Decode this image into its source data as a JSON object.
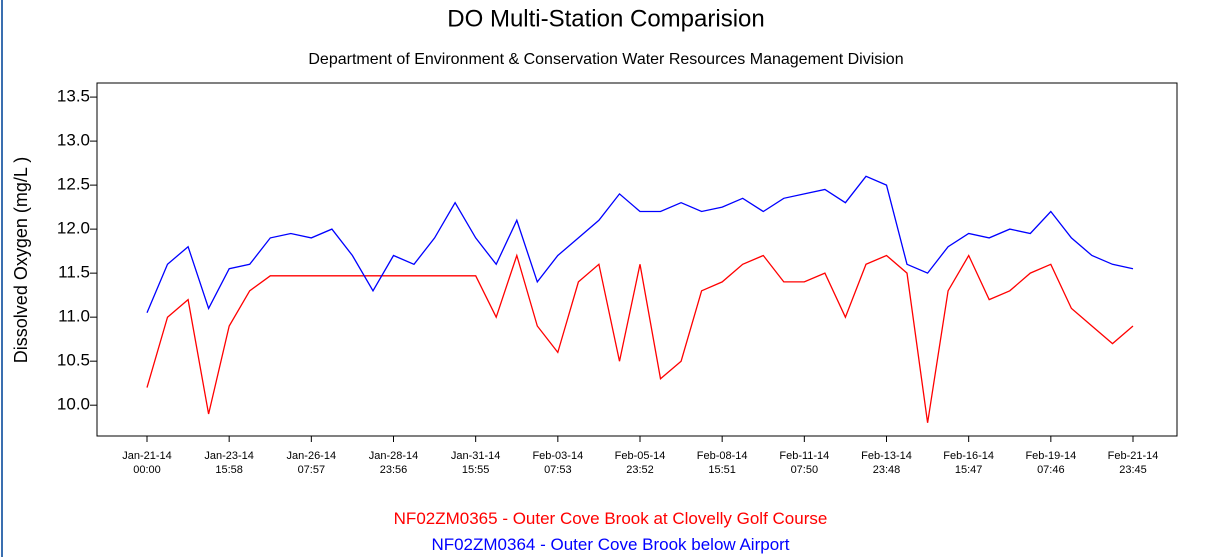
{
  "chart_data": {
    "type": "line",
    "title": "DO Multi-Station Comparision",
    "subtitle": "Department of Environment & Conservation Water Resources Management Division",
    "y_label": "Dissolved Oxygen (mg/L )",
    "categories": [
      "Jan-21-14\n00:00",
      null,
      null,
      null,
      "Jan-23-14\n15:58",
      null,
      null,
      null,
      "Jan-26-14\n07:57",
      null,
      null,
      null,
      "Jan-28-14\n23:56",
      null,
      null,
      null,
      "Jan-31-14\n15:55",
      null,
      null,
      null,
      "Feb-03-14\n07:53",
      null,
      null,
      null,
      "Feb-05-14\n23:52",
      null,
      null,
      null,
      "Feb-08-14\n15:51",
      null,
      null,
      null,
      "Feb-11-14\n07:50",
      null,
      null,
      null,
      "Feb-13-14\n23:48",
      null,
      null,
      null,
      "Feb-16-14\n15:47",
      null,
      null,
      null,
      "Feb-19-14\n07:46",
      null,
      null,
      null,
      "Feb-21-14\n23:45"
    ],
    "series": [
      {
        "name": "NF02ZM0365 - Outer Cove Brook at Clovelly Golf Course",
        "color": "#ff0000",
        "values": [
          10.2,
          11.0,
          11.2,
          9.9,
          10.9,
          11.3,
          11.47,
          11.47,
          11.47,
          11.47,
          11.47,
          11.47,
          11.47,
          11.47,
          11.47,
          11.47,
          11.47,
          11.0,
          11.7,
          10.9,
          10.6,
          11.4,
          11.6,
          10.5,
          11.6,
          10.3,
          10.5,
          11.3,
          11.4,
          11.6,
          11.7,
          11.4,
          11.4,
          11.5,
          11.0,
          11.6,
          11.7,
          11.5,
          9.8,
          11.3,
          11.7,
          11.2,
          11.3,
          11.5,
          11.6,
          11.1,
          10.9,
          10.7,
          10.9
        ]
      },
      {
        "name": "NF02ZM0364 - Outer Cove Brook below Airport",
        "color": "#0000ff",
        "values": [
          11.05,
          11.6,
          11.8,
          11.1,
          11.55,
          11.6,
          11.9,
          11.95,
          11.9,
          12.0,
          11.7,
          11.3,
          11.7,
          11.6,
          11.9,
          12.3,
          11.9,
          11.6,
          12.1,
          11.4,
          11.7,
          11.9,
          12.1,
          12.4,
          12.2,
          12.2,
          12.3,
          12.2,
          12.25,
          12.35,
          12.2,
          12.35,
          12.4,
          12.45,
          12.3,
          12.6,
          12.5,
          11.6,
          11.5,
          11.8,
          11.95,
          11.9,
          12.0,
          11.95,
          12.2,
          11.9,
          11.7,
          11.6,
          11.55
        ]
      }
    ],
    "ylim": [
      9.65,
      13.66
    ],
    "yticks": [
      {
        "value": 10,
        "label": "10.0"
      },
      {
        "value": 10.5,
        "label": "10.5"
      },
      {
        "value": 11,
        "label": "11.0"
      },
      {
        "value": 11.5,
        "label": "11.5"
      },
      {
        "value": 12,
        "label": "12.0"
      },
      {
        "value": 12.5,
        "label": "12.5"
      },
      {
        "value": 13,
        "label": "13.0"
      },
      {
        "value": 13.5,
        "label": "13.5"
      }
    ],
    "grid": false
  }
}
